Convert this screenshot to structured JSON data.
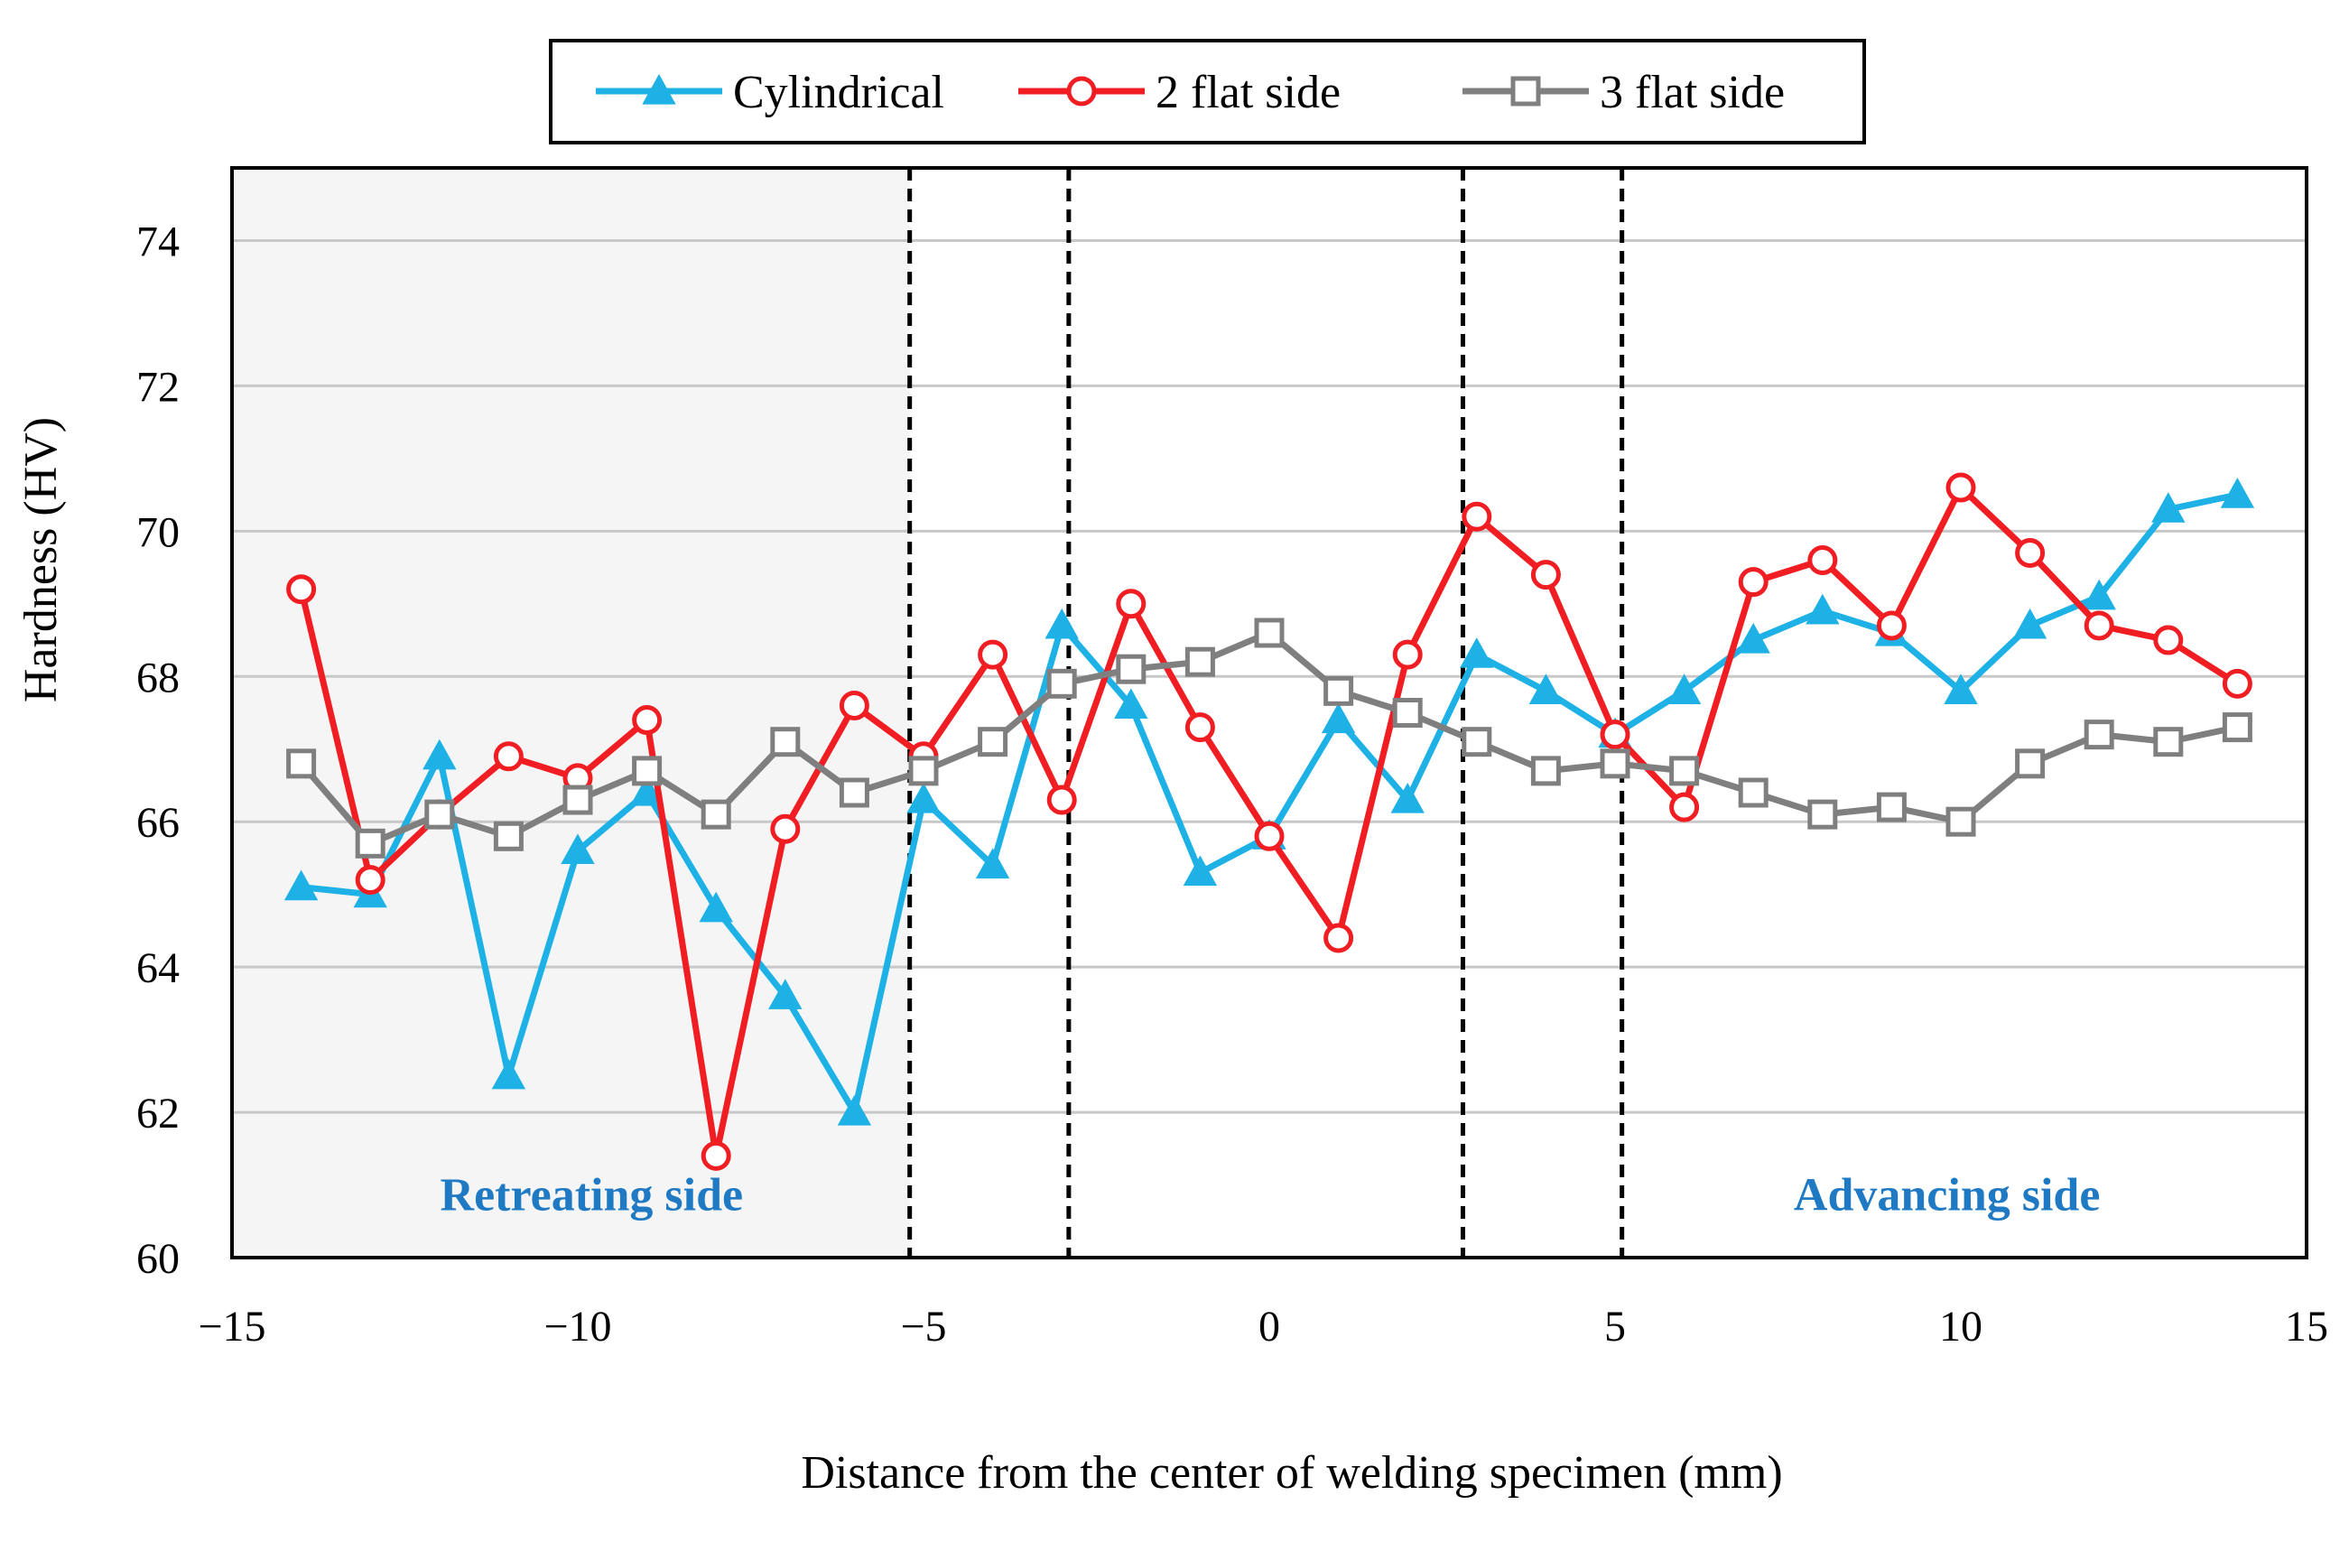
{
  "chart_data": {
    "type": "line",
    "title": "",
    "xlabel": "Distance from the center of welding specimen (mm)",
    "ylabel": "Hardness (HV)",
    "xlim": [
      -15,
      15
    ],
    "ylim": [
      60,
      75
    ],
    "xticks": [
      -15,
      -10,
      -5,
      0,
      5,
      10,
      15
    ],
    "xtick_labels": [
      "−15",
      "−10",
      "−5",
      "0",
      "5",
      "10",
      "15"
    ],
    "yticks": [
      60,
      62,
      64,
      66,
      68,
      70,
      72,
      74
    ],
    "ytick_labels": [
      "60",
      "62",
      "64",
      "66",
      "68",
      "70",
      "72",
      "74"
    ],
    "grid": "horizontal",
    "legend_position": "top-center",
    "zone_boundaries": [
      -5.2,
      -2.9,
      2.8,
      5.1
    ],
    "shaded_region": [
      -15,
      -5.2
    ],
    "annotations": [
      {
        "text": "Retreating side",
        "x": -9.8,
        "y": 60.65,
        "color": "#1F7AC3"
      },
      {
        "text": "Advancing side",
        "x": 9.8,
        "y": 60.65,
        "color": "#1F7AC3"
      }
    ],
    "series": [
      {
        "name": "Cylindrical",
        "color": "#1EB1E6",
        "marker": "triangle",
        "x": [
          -14,
          -13,
          -12,
          -11,
          -10,
          -9,
          -8,
          -7,
          -6,
          -5,
          -4,
          -3,
          -2,
          -1,
          0,
          1,
          2,
          3,
          4,
          5,
          6,
          7,
          8,
          9,
          10,
          11,
          12,
          13,
          14
        ],
        "values": [
          65.1,
          65.0,
          66.9,
          62.5,
          65.6,
          66.4,
          64.8,
          63.6,
          62.0,
          66.3,
          65.4,
          68.7,
          67.6,
          65.3,
          65.8,
          67.4,
          66.3,
          68.3,
          67.8,
          67.2,
          67.8,
          68.5,
          68.9,
          68.6,
          67.8,
          68.7,
          69.1,
          70.3,
          70.5
        ]
      },
      {
        "name": "2 flat side",
        "color": "#F01E23",
        "marker": "circle",
        "x": [
          -14,
          -13,
          -12,
          -11,
          -10,
          -9,
          -8,
          -7,
          -6,
          -5,
          -4,
          -3,
          -2,
          -1,
          0,
          1,
          2,
          3,
          4,
          5,
          6,
          7,
          8,
          9,
          10,
          11,
          12,
          13,
          14
        ],
        "values": [
          69.2,
          65.2,
          66.1,
          66.9,
          66.6,
          67.4,
          61.4,
          65.9,
          67.6,
          66.9,
          68.3,
          66.3,
          69.0,
          67.3,
          65.8,
          64.4,
          68.3,
          70.2,
          69.4,
          67.2,
          66.2,
          69.3,
          69.6,
          68.7,
          70.6,
          69.7,
          68.7,
          68.5,
          67.9
        ]
      },
      {
        "name": "3 flat side",
        "color": "#7F7F7F",
        "marker": "square",
        "x": [
          -14,
          -13,
          -12,
          -11,
          -10,
          -9,
          -8,
          -7,
          -6,
          -5,
          -4,
          -3,
          -2,
          -1,
          0,
          1,
          2,
          3,
          4,
          5,
          6,
          7,
          8,
          9,
          10,
          11,
          12,
          13,
          14
        ],
        "values": [
          66.8,
          65.7,
          66.1,
          65.8,
          66.3,
          66.7,
          66.1,
          67.1,
          66.4,
          66.7,
          67.1,
          67.9,
          68.1,
          68.2,
          68.6,
          67.8,
          67.5,
          67.1,
          66.7,
          66.8,
          66.7,
          66.4,
          66.1,
          66.2,
          66.0,
          66.8,
          67.2,
          67.1,
          67.3
        ]
      }
    ]
  }
}
